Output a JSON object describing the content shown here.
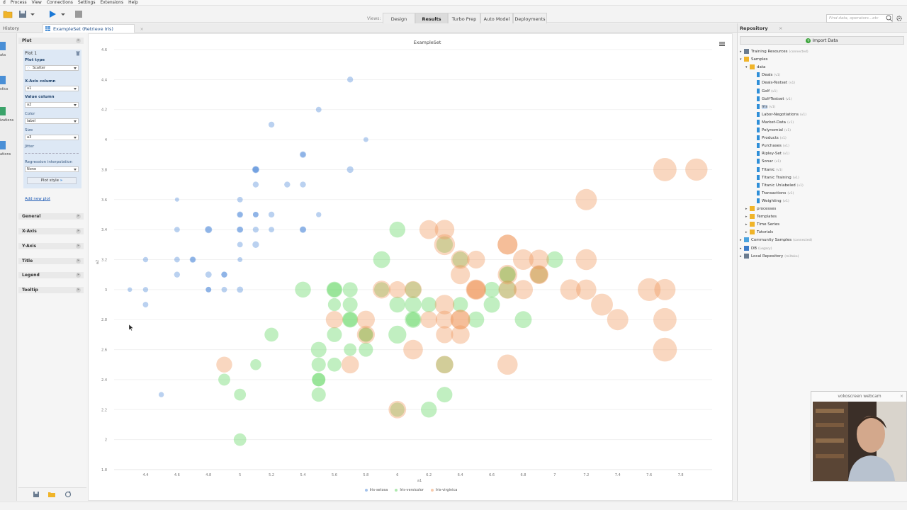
{
  "menu": [
    "d",
    "Process",
    "View",
    "Connections",
    "Settings",
    "Extensions",
    "Help"
  ],
  "views": {
    "label": "Views:",
    "buttons": [
      "Design",
      "Results",
      "Turbo Prep",
      "Auto Model",
      "Deployments"
    ],
    "active": "Results"
  },
  "search": {
    "placeholder": "Find data, operators...etc"
  },
  "tabs": {
    "history": "History",
    "exampleset": "ExampleSet (Retrieve Iris)"
  },
  "left_strip": [
    "ata",
    "stics",
    "izations",
    "ations"
  ],
  "config": {
    "plot_header": "Plot",
    "plot_card_title": "Plot 1",
    "plot_type_label": "Plot type",
    "plot_type_value": "Scatter",
    "x_axis_label": "X-Axis column",
    "x_axis_value": "a1",
    "value_label": "Value column",
    "value_value": "a2",
    "color_label": "Color",
    "color_value": "label",
    "size_label": "Size",
    "size_value": "a3",
    "jitter_label": "Jitter",
    "regression_label": "Regression interpolation",
    "regression_value": "None",
    "plot_style_button": "Plot style",
    "add_new_plot": "Add new plot",
    "sections": [
      "General",
      "X-Axis",
      "Y-Axis",
      "Title",
      "Legend",
      "Tooltip"
    ]
  },
  "chart_data": {
    "type": "scatter",
    "title": "ExampleSet",
    "xlabel": "a1",
    "ylabel": "a2",
    "xlim": [
      4.2,
      8.0
    ],
    "ylim": [
      1.8,
      4.6
    ],
    "x_ticks": [
      "4.4",
      "4.6",
      "4.8",
      "5",
      "5.2",
      "5.4",
      "5.6",
      "5.8",
      "6",
      "6.2",
      "6.4",
      "6.6",
      "6.8",
      "7",
      "7.2",
      "7.4",
      "7.6",
      "7.8"
    ],
    "y_ticks": [
      "1.8",
      "2",
      "2.2",
      "2.4",
      "2.6",
      "2.8",
      "3",
      "3.2",
      "3.4",
      "3.6",
      "3.8",
      "4",
      "4.2",
      "4.4",
      "4.6"
    ],
    "series": [
      {
        "name": "Iris-setosa",
        "color": "#4a86d8",
        "points": [
          [
            5.1,
            3.5,
            1.4
          ],
          [
            4.9,
            3.0,
            1.4
          ],
          [
            4.7,
            3.2,
            1.3
          ],
          [
            4.6,
            3.1,
            1.5
          ],
          [
            5.0,
            3.6,
            1.4
          ],
          [
            5.4,
            3.9,
            1.7
          ],
          [
            4.6,
            3.4,
            1.4
          ],
          [
            5.0,
            3.4,
            1.5
          ],
          [
            4.4,
            2.9,
            1.4
          ],
          [
            4.9,
            3.1,
            1.5
          ],
          [
            5.4,
            3.7,
            1.5
          ],
          [
            4.8,
            3.4,
            1.6
          ],
          [
            4.8,
            3.0,
            1.4
          ],
          [
            4.3,
            3.0,
            1.1
          ],
          [
            5.8,
            4.0,
            1.2
          ],
          [
            5.7,
            4.4,
            1.5
          ],
          [
            5.4,
            3.9,
            1.3
          ],
          [
            5.1,
            3.5,
            1.4
          ],
          [
            5.7,
            3.8,
            1.7
          ],
          [
            5.1,
            3.8,
            1.5
          ],
          [
            5.4,
            3.4,
            1.7
          ],
          [
            5.1,
            3.7,
            1.5
          ],
          [
            4.6,
            3.6,
            1.0
          ],
          [
            5.1,
            3.3,
            1.7
          ],
          [
            4.8,
            3.4,
            1.9
          ],
          [
            5.0,
            3.0,
            1.6
          ],
          [
            5.0,
            3.4,
            1.6
          ],
          [
            5.2,
            3.5,
            1.5
          ],
          [
            5.2,
            3.4,
            1.4
          ],
          [
            4.7,
            3.2,
            1.6
          ],
          [
            4.8,
            3.1,
            1.6
          ],
          [
            5.4,
            3.4,
            1.5
          ],
          [
            5.2,
            4.1,
            1.5
          ],
          [
            5.5,
            4.2,
            1.4
          ],
          [
            4.9,
            3.1,
            1.5
          ],
          [
            5.0,
            3.2,
            1.2
          ],
          [
            5.5,
            3.5,
            1.3
          ],
          [
            4.4,
            3.0,
            1.3
          ],
          [
            5.1,
            3.4,
            1.5
          ],
          [
            5.0,
            3.5,
            1.3
          ],
          [
            4.5,
            2.3,
            1.3
          ],
          [
            4.4,
            3.2,
            1.3
          ],
          [
            5.0,
            3.5,
            1.6
          ],
          [
            5.1,
            3.8,
            1.9
          ],
          [
            4.8,
            3.0,
            1.4
          ],
          [
            5.1,
            3.8,
            1.6
          ],
          [
            4.6,
            3.2,
            1.4
          ],
          [
            5.3,
            3.7,
            1.5
          ],
          [
            5.0,
            3.3,
            1.4
          ]
        ]
      },
      {
        "name": "Iris-versicolor",
        "color": "#5dd45d",
        "points": [
          [
            7.0,
            3.2,
            4.7
          ],
          [
            6.4,
            3.2,
            4.5
          ],
          [
            6.9,
            3.1,
            4.9
          ],
          [
            5.5,
            2.3,
            4.0
          ],
          [
            6.5,
            2.8,
            4.6
          ],
          [
            5.7,
            2.8,
            4.5
          ],
          [
            6.3,
            3.3,
            4.7
          ],
          [
            4.9,
            2.4,
            3.3
          ],
          [
            6.6,
            2.9,
            4.6
          ],
          [
            5.2,
            2.7,
            3.9
          ],
          [
            5.0,
            2.0,
            3.5
          ],
          [
            5.9,
            3.0,
            4.2
          ],
          [
            6.0,
            2.2,
            4.0
          ],
          [
            6.1,
            2.9,
            4.7
          ],
          [
            5.6,
            2.9,
            3.6
          ],
          [
            6.7,
            3.1,
            4.4
          ],
          [
            5.6,
            3.0,
            4.5
          ],
          [
            5.8,
            2.7,
            4.1
          ],
          [
            6.2,
            2.2,
            4.5
          ],
          [
            5.6,
            2.5,
            3.9
          ],
          [
            5.9,
            3.2,
            4.8
          ],
          [
            6.1,
            2.8,
            4.0
          ],
          [
            6.3,
            2.5,
            4.9
          ],
          [
            6.1,
            2.8,
            4.7
          ],
          [
            6.4,
            2.9,
            4.3
          ],
          [
            6.6,
            3.0,
            4.4
          ],
          [
            6.8,
            2.8,
            4.8
          ],
          [
            6.7,
            3.0,
            5.0
          ],
          [
            6.0,
            2.9,
            4.5
          ],
          [
            5.7,
            2.6,
            3.5
          ],
          [
            5.5,
            2.4,
            3.8
          ],
          [
            5.5,
            2.4,
            3.7
          ],
          [
            5.8,
            2.7,
            3.9
          ],
          [
            6.0,
            2.7,
            5.1
          ],
          [
            5.4,
            3.0,
            4.5
          ],
          [
            6.0,
            3.4,
            4.5
          ],
          [
            6.7,
            3.1,
            4.7
          ],
          [
            6.3,
            2.3,
            4.4
          ],
          [
            5.6,
            3.0,
            4.1
          ],
          [
            5.5,
            2.5,
            4.0
          ],
          [
            5.5,
            2.6,
            4.4
          ],
          [
            6.1,
            3.0,
            4.6
          ],
          [
            5.8,
            2.6,
            4.0
          ],
          [
            5.0,
            2.3,
            3.3
          ],
          [
            5.6,
            2.7,
            4.2
          ],
          [
            5.7,
            3.0,
            4.2
          ],
          [
            5.7,
            2.9,
            4.2
          ],
          [
            6.2,
            2.9,
            4.3
          ],
          [
            5.1,
            2.5,
            3.0
          ],
          [
            5.7,
            2.8,
            4.1
          ]
        ]
      },
      {
        "name": "Iris-virginica",
        "color": "#f0955a",
        "points": [
          [
            6.3,
            3.3,
            6.0
          ],
          [
            5.8,
            2.7,
            5.1
          ],
          [
            7.1,
            3.0,
            5.9
          ],
          [
            6.3,
            2.9,
            5.6
          ],
          [
            6.5,
            3.0,
            5.8
          ],
          [
            7.6,
            3.0,
            6.6
          ],
          [
            4.9,
            2.5,
            4.5
          ],
          [
            7.3,
            2.9,
            6.3
          ],
          [
            6.7,
            2.5,
            5.8
          ],
          [
            7.2,
            3.6,
            6.1
          ],
          [
            6.5,
            3.2,
            5.1
          ],
          [
            6.4,
            2.7,
            5.3
          ],
          [
            6.8,
            3.0,
            5.5
          ],
          [
            5.7,
            2.5,
            5.0
          ],
          [
            5.8,
            2.8,
            5.1
          ],
          [
            6.4,
            3.2,
            5.3
          ],
          [
            6.5,
            3.0,
            5.5
          ],
          [
            7.7,
            3.8,
            6.7
          ],
          [
            7.7,
            2.6,
            6.9
          ],
          [
            6.0,
            2.2,
            5.0
          ],
          [
            6.9,
            3.2,
            5.7
          ],
          [
            5.6,
            2.8,
            4.9
          ],
          [
            7.7,
            2.8,
            6.7
          ],
          [
            6.3,
            2.7,
            4.9
          ],
          [
            6.7,
            3.3,
            5.7
          ],
          [
            7.2,
            3.2,
            6.0
          ],
          [
            6.2,
            2.8,
            4.8
          ],
          [
            6.1,
            3.0,
            4.9
          ],
          [
            6.4,
            2.8,
            5.6
          ],
          [
            7.2,
            3.0,
            5.8
          ],
          [
            7.4,
            2.8,
            6.1
          ],
          [
            7.9,
            3.8,
            6.4
          ],
          [
            6.4,
            2.8,
            5.6
          ],
          [
            6.3,
            2.8,
            5.1
          ],
          [
            6.1,
            2.6,
            5.6
          ],
          [
            7.7,
            3.0,
            6.1
          ],
          [
            6.3,
            3.4,
            5.6
          ],
          [
            6.4,
            3.1,
            5.5
          ],
          [
            6.0,
            3.0,
            4.8
          ],
          [
            6.9,
            3.1,
            5.4
          ],
          [
            6.7,
            3.1,
            5.6
          ],
          [
            6.9,
            3.1,
            5.1
          ],
          [
            6.8,
            3.2,
            5.9
          ],
          [
            6.7,
            3.3,
            5.7
          ],
          [
            6.7,
            3.0,
            5.2
          ],
          [
            6.3,
            2.5,
            5.0
          ],
          [
            6.5,
            3.0,
            5.2
          ],
          [
            6.2,
            3.4,
            5.4
          ],
          [
            5.9,
            3.0,
            5.1
          ]
        ]
      }
    ]
  },
  "repository": {
    "title": "Repository",
    "import_button": "Import Data",
    "tree": [
      {
        "label": "Training Resources",
        "suffix": "(connected)",
        "level": 0,
        "icon": "server",
        "toggle": "right"
      },
      {
        "label": "Samples",
        "suffix": "",
        "level": 0,
        "icon": "folder",
        "toggle": "down"
      },
      {
        "label": "data",
        "suffix": "",
        "level": 1,
        "icon": "folder",
        "toggle": "down"
      },
      {
        "label": "Deals",
        "suffix": "(v1)",
        "level": 2,
        "icon": "data"
      },
      {
        "label": "Deals-Testset",
        "suffix": "(v1)",
        "level": 2,
        "icon": "data"
      },
      {
        "label": "Golf",
        "suffix": "(v1)",
        "level": 2,
        "icon": "data"
      },
      {
        "label": "Golf-Testset",
        "suffix": "(v1)",
        "level": 2,
        "icon": "data"
      },
      {
        "label": "Iris",
        "suffix": "(v1)",
        "level": 2,
        "icon": "data",
        "selected": true
      },
      {
        "label": "Labor-Negotiations",
        "suffix": "(v1)",
        "level": 2,
        "icon": "data"
      },
      {
        "label": "Market-Data",
        "suffix": "(v1)",
        "level": 2,
        "icon": "data"
      },
      {
        "label": "Polynomial",
        "suffix": "(v1)",
        "level": 2,
        "icon": "data"
      },
      {
        "label": "Products",
        "suffix": "(v1)",
        "level": 2,
        "icon": "data"
      },
      {
        "label": "Purchases",
        "suffix": "(v1)",
        "level": 2,
        "icon": "data"
      },
      {
        "label": "Ripley-Set",
        "suffix": "(v1)",
        "level": 2,
        "icon": "data"
      },
      {
        "label": "Sonar",
        "suffix": "(v1)",
        "level": 2,
        "icon": "data"
      },
      {
        "label": "Titanic",
        "suffix": "(v1)",
        "level": 2,
        "icon": "data"
      },
      {
        "label": "Titanic Training",
        "suffix": "(v1)",
        "level": 2,
        "icon": "data"
      },
      {
        "label": "Titanic Unlabeled",
        "suffix": "(v1)",
        "level": 2,
        "icon": "data"
      },
      {
        "label": "Transactions",
        "suffix": "(v1)",
        "level": 2,
        "icon": "data"
      },
      {
        "label": "Weighting",
        "suffix": "(v1)",
        "level": 2,
        "icon": "data"
      },
      {
        "label": "processes",
        "suffix": "",
        "level": 1,
        "icon": "folder",
        "toggle": "right"
      },
      {
        "label": "Templates",
        "suffix": "",
        "level": 1,
        "icon": "folder",
        "toggle": "right"
      },
      {
        "label": "Time Series",
        "suffix": "",
        "level": 1,
        "icon": "folder",
        "toggle": "right"
      },
      {
        "label": "Tutorials",
        "suffix": "",
        "level": 1,
        "icon": "folder",
        "toggle": "right"
      },
      {
        "label": "Community Samples",
        "suffix": "(connected)",
        "level": 0,
        "icon": "cloud",
        "toggle": "right"
      },
      {
        "label": "DB",
        "suffix": "(Legacy)",
        "level": 0,
        "icon": "db",
        "toggle": "right"
      },
      {
        "label": "Local Repository",
        "suffix": "(miltoko)",
        "level": 0,
        "icon": "server",
        "toggle": "right"
      }
    ]
  },
  "webcam": {
    "title": "vokoscreen webcam"
  },
  "colors": {
    "accent": "#1a78d6",
    "setosa": "#4a86d8",
    "versicolor": "#5dd45d",
    "virginica": "#f0955a"
  }
}
